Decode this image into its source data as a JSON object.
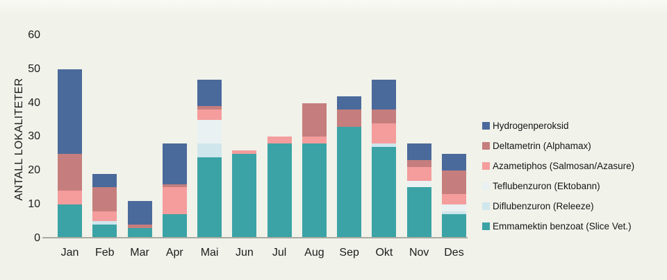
{
  "chart_data": {
    "type": "bar",
    "subtype": "stacked",
    "title": "",
    "ylabel": "ANTALL LOKALITETER",
    "xlabel": "",
    "ylim": [
      0,
      60
    ],
    "yticks": [
      0,
      10,
      20,
      30,
      40,
      50,
      60
    ],
    "grid": false,
    "legend_position": "right",
    "categories": [
      "Jan",
      "Feb",
      "Mar",
      "Apr",
      "Mai",
      "Jun",
      "Jul",
      "Aug",
      "Sep",
      "Okt",
      "Nov",
      "Des"
    ],
    "series": [
      {
        "name": "Emmamektin benzoat (Slice Vet.)",
        "color": "#3ba3a5",
        "values": [
          10,
          4,
          3,
          7,
          24,
          25,
          28,
          28,
          33,
          27,
          15,
          7
        ]
      },
      {
        "name": "Diflubenzuron (Releeze)",
        "color": "#cfe6ec",
        "values": [
          0,
          1,
          0,
          0,
          4,
          0,
          0,
          0,
          0,
          1,
          0,
          1
        ]
      },
      {
        "name": "Teflubenzuron (Ektobann)",
        "color": "#e9f1f3",
        "values": [
          0,
          0,
          0,
          0,
          7,
          0,
          0,
          0,
          0,
          0,
          2,
          2
        ]
      },
      {
        "name": "Azametiphos (Salmosan/Azasure)",
        "color": "#f59c9d",
        "values": [
          4,
          3,
          0,
          8,
          3,
          1,
          2,
          2,
          0,
          6,
          4,
          3
        ]
      },
      {
        "name": "Deltametrin (Alphamax)",
        "color": "#c57e7d",
        "values": [
          11,
          7,
          1,
          1,
          1,
          0,
          0,
          10,
          5,
          4,
          2,
          7
        ]
      },
      {
        "name": "Hydrogenperoksid",
        "color": "#4a6a9b",
        "values": [
          25,
          4,
          7,
          12,
          8,
          0,
          0,
          0,
          4,
          9,
          5,
          5
        ]
      }
    ],
    "totals": [
      50,
      19,
      11,
      28,
      47,
      26,
      30,
      40,
      42,
      47,
      28,
      25
    ],
    "legend_order_top_to_bottom": [
      "Hydrogenperoksid",
      "Deltametrin (Alphamax)",
      "Azametiphos (Salmosan/Azasure)",
      "Teflubenzuron (Ektobann)",
      "Diflubenzuron (Releeze)",
      "Emmamektin benzoat (Slice Vet.)"
    ],
    "colors": {
      "background": "#f1f2ea",
      "axis_line": "#a9aaa0",
      "text": "#1c1c1c"
    }
  }
}
